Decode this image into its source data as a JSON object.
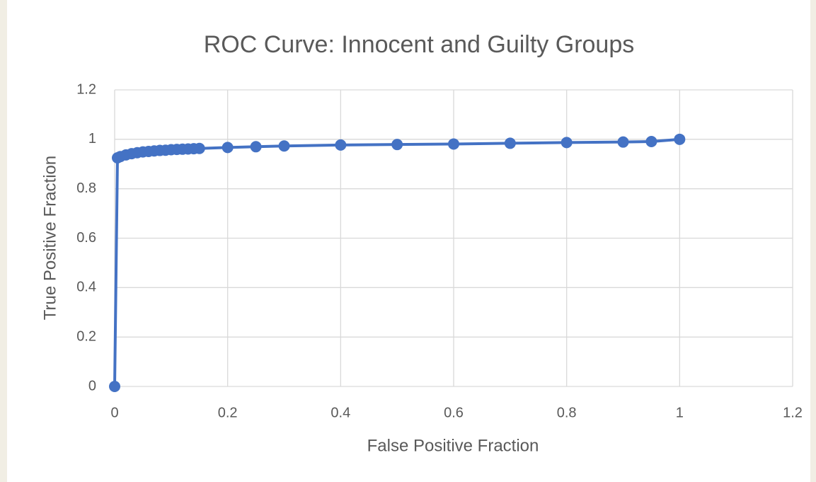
{
  "chart_data": {
    "type": "scatter",
    "title": "ROC Curve: Innocent and Guilty Groups",
    "x_label": "False Positive Fraction",
    "y_label": "True Positive Fraction",
    "series": [
      {
        "color": "#4472c4",
        "x": [
          0,
          0.005,
          0.01,
          0.02,
          0.03,
          0.04,
          0.05,
          0.06,
          0.07,
          0.08,
          0.09,
          0.1,
          0.11,
          0.12,
          0.13,
          0.14,
          0.15,
          0.2,
          0.25,
          0.3,
          0.4,
          0.5,
          0.6,
          0.7,
          0.8,
          0.9,
          0.95,
          1
        ],
        "values": [
          0,
          0.925,
          0.93,
          0.937,
          0.942,
          0.946,
          0.949,
          0.951,
          0.953,
          0.955,
          0.956,
          0.958,
          0.959,
          0.96,
          0.961,
          0.962,
          0.963,
          0.967,
          0.97,
          0.973,
          0.977,
          0.979,
          0.981,
          0.984,
          0.987,
          0.989,
          0.991,
          1
        ]
      }
    ],
    "xlim": [
      0,
      1.2
    ],
    "xticks": [
      0,
      0.2,
      0.4,
      0.6,
      0.8,
      1,
      1.2
    ],
    "ylim": [
      0,
      1.2
    ],
    "yticks": [
      0,
      0.2,
      0.4,
      0.6,
      0.8,
      1,
      1.2
    ],
    "grid": true,
    "lines": true
  }
}
